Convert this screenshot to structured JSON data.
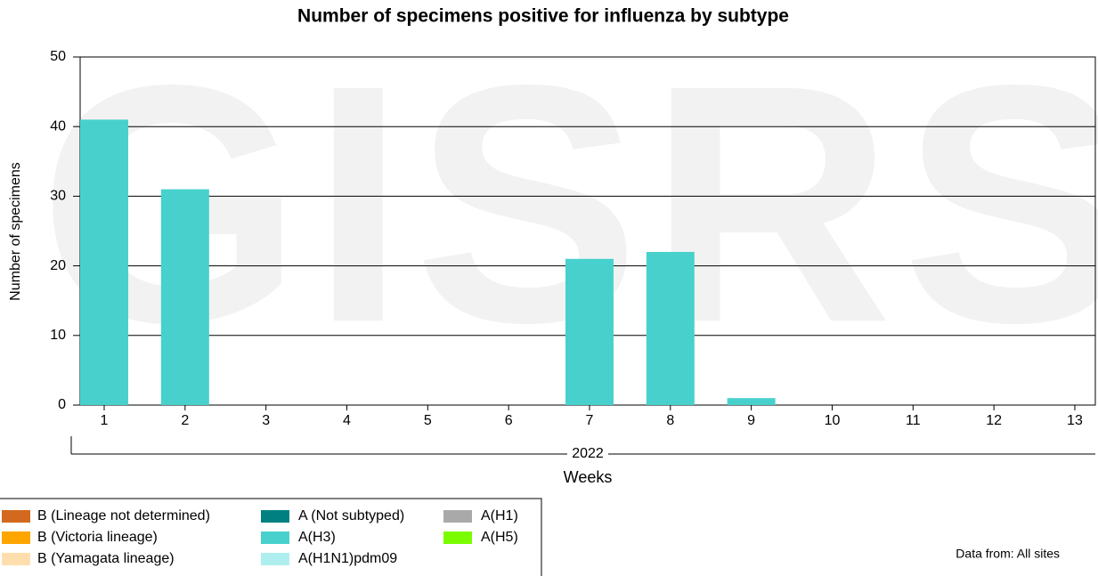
{
  "chart_data": {
    "type": "stacked_bar",
    "title": "Number of specimens positive for influenza by subtype",
    "y_label": "Number of specimens",
    "x_label": "Weeks",
    "x_group_label": "2022",
    "annotation": "Data from: All sites",
    "watermark": "GISRS",
    "categories": [
      "1",
      "2",
      "3",
      "4",
      "5",
      "6",
      "7",
      "8",
      "9",
      "10",
      "11",
      "12",
      "13"
    ],
    "series": [
      {
        "name": "B (Lineage not determined)",
        "color": "#d2691e",
        "values": [
          0,
          0,
          0,
          0,
          0,
          0,
          0,
          0,
          0,
          0,
          0,
          0,
          0
        ]
      },
      {
        "name": "B (Victoria lineage)",
        "color": "#ffa500",
        "values": [
          0,
          0,
          0,
          0,
          0,
          0,
          0,
          0,
          0,
          0,
          0,
          0,
          0
        ]
      },
      {
        "name": "B (Yamagata lineage)",
        "color": "#ffdead",
        "values": [
          0,
          0,
          0,
          0,
          0,
          0,
          0,
          0,
          0,
          0,
          0,
          0,
          0
        ]
      },
      {
        "name": "A (Not subtyped)",
        "color": "#008080",
        "values": [
          0,
          0,
          0,
          0,
          0,
          0,
          0,
          0,
          0,
          0,
          0,
          0,
          0
        ]
      },
      {
        "name": "A(H3)",
        "color": "#48d1cc",
        "values": [
          41,
          31,
          0,
          0,
          0,
          0,
          21,
          22,
          1,
          0,
          0,
          0,
          0
        ]
      },
      {
        "name": "A(H1N1)pdm09",
        "color": "#afeeee",
        "values": [
          0,
          0,
          0,
          0,
          0,
          0,
          0,
          0,
          0,
          0,
          0,
          0,
          0
        ]
      },
      {
        "name": "A(H1)",
        "color": "#a9a9a9",
        "values": [
          0,
          0,
          0,
          0,
          0,
          0,
          0,
          0,
          0,
          0,
          0,
          0,
          0
        ]
      },
      {
        "name": "A(H5)",
        "color": "#7cfc00",
        "values": [
          0,
          0,
          0,
          0,
          0,
          0,
          0,
          0,
          0,
          0,
          0,
          0,
          0
        ]
      }
    ],
    "ylim": [
      0,
      50
    ],
    "yticks": [
      0,
      10,
      20,
      30,
      40,
      50
    ],
    "grid": true
  }
}
